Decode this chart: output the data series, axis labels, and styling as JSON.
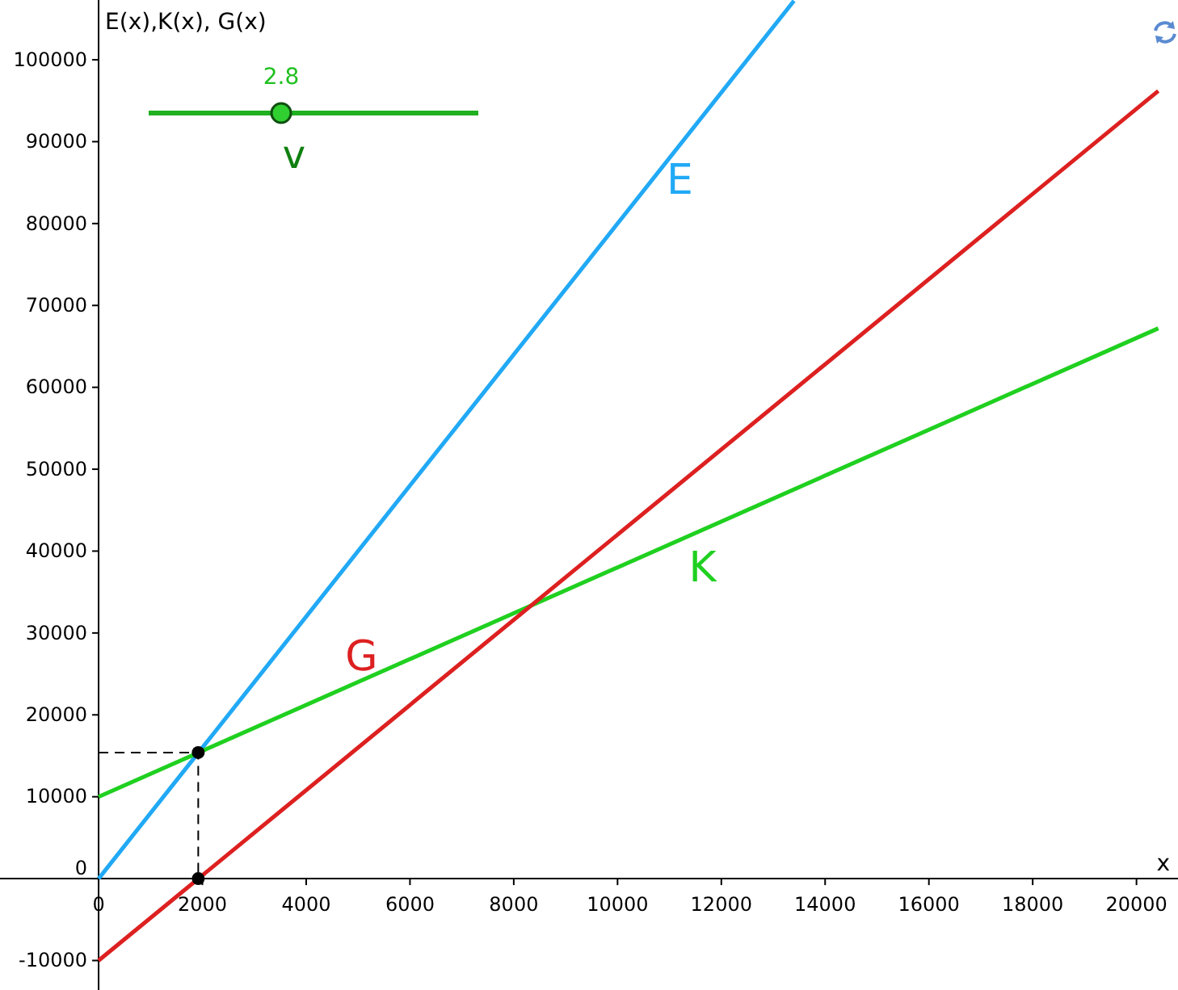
{
  "chart_data": {
    "type": "line",
    "xlabel": "x",
    "ylabel": "E(x),K(x), G(x)",
    "xlim": [
      -1900,
      20800
    ],
    "ylim": [
      -13600,
      107300
    ],
    "xticks": [
      0,
      2000,
      4000,
      6000,
      8000,
      10000,
      12000,
      14000,
      16000,
      18000,
      20000
    ],
    "yticks": [
      -10000,
      0,
      10000,
      20000,
      30000,
      40000,
      50000,
      60000,
      70000,
      80000,
      90000,
      100000
    ],
    "grid": false,
    "marker": "none",
    "line_style": "solid",
    "series": [
      {
        "name": "E",
        "color": "#21a9f5",
        "x": [
          0,
          13400
        ],
        "values": [
          0,
          107200
        ]
      },
      {
        "name": "K",
        "color": "#20d020",
        "x": [
          0,
          20420
        ],
        "values": [
          10000,
          67200
        ]
      },
      {
        "name": "G",
        "color": "#dd2020",
        "x": [
          0,
          20420
        ],
        "values": [
          -10000,
          96200
        ]
      },
      {
        "type": "line",
        "color": "#000000",
        "line_style": "dashed",
        "x": [
          0,
          1920,
          1920
        ],
        "values": [
          15400,
          15400,
          0
        ]
      },
      {
        "type": "scatter",
        "color": "#000000",
        "marker": "circle",
        "x": [
          1920,
          1920
        ],
        "values": [
          15400,
          0
        ]
      }
    ],
    "annotations": [
      "2.8",
      "v"
    ]
  }
}
